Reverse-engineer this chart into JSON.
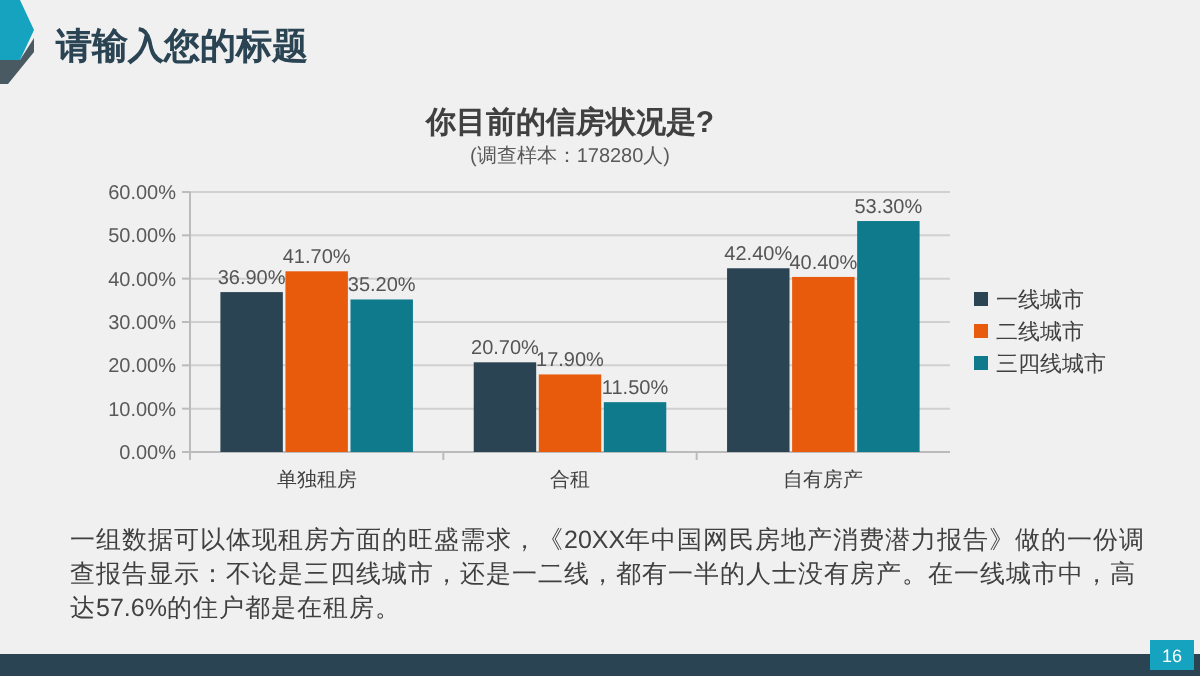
{
  "chart_data": {
    "type": "bar",
    "title": "你目前的信房状况是?",
    "subtitle": "(调查样本：178280人)",
    "annotations": [
      "请输入您的标题",
      "一组数据可以体现租房方面的旺盛需求，《20XX年中国网民房地产消费潜力报告》做的一份调查报告显示：不论是三四线城市，还是一二线，都有一半的人士没有房产。在一线城市中，高达57.6%的住户都是在租房。",
      "16"
    ],
    "categories": [
      "单独租房",
      "合租",
      "自有房产"
    ],
    "series": [
      {
        "name": "一线城市",
        "color": "#2a4453",
        "values": [
          36.9,
          20.7,
          42.4
        ],
        "value_labels": [
          "36.90%",
          "20.70%",
          "42.40%"
        ]
      },
      {
        "name": "二线城市",
        "color": "#e85a0c",
        "values": [
          41.7,
          17.9,
          40.4
        ],
        "value_labels": [
          "41.70%",
          "17.90%",
          "40.40%"
        ]
      },
      {
        "name": "三四线城市",
        "color": "#0e7a8c",
        "values": [
          35.2,
          11.5,
          53.3
        ],
        "value_labels": [
          "35.20%",
          "11.50%",
          "53.30%"
        ]
      }
    ],
    "ylim": [
      0,
      60
    ],
    "yticks": [
      {
        "value": 0,
        "label": "0.00%"
      },
      {
        "value": 10,
        "label": "10.00%"
      },
      {
        "value": 20,
        "label": "20.00%"
      },
      {
        "value": 30,
        "label": "30.00%"
      },
      {
        "value": 40,
        "label": "40.00%"
      },
      {
        "value": 50,
        "label": "50.00%"
      },
      {
        "value": 60,
        "label": "60.00%"
      }
    ],
    "grid": "y",
    "legend": "right"
  }
}
